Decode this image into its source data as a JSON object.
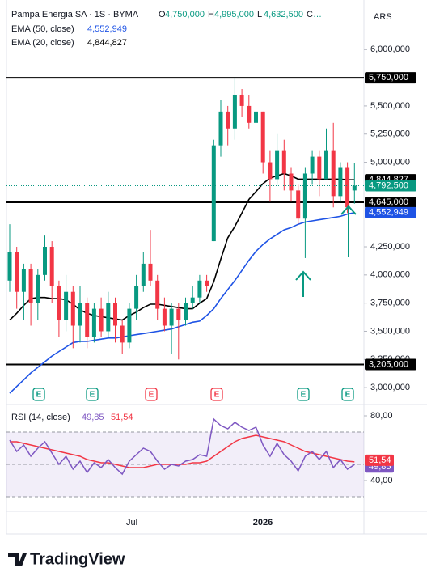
{
  "chart_data": {
    "type": "candlestick",
    "header": {
      "symbol": "Pampa Energia SA · 1S · BYMA",
      "fields": [
        {
          "key": "O",
          "label": "4,750,000"
        },
        {
          "key": "H",
          "label": "4,995,000"
        },
        {
          "key": "L",
          "label": "4,632,500"
        },
        {
          "key": "C",
          "label": "…"
        }
      ]
    },
    "currency": "ARS",
    "ylim": [
      2850000,
      6440000
    ],
    "yticks": [
      {
        "value": 6000000,
        "label": "6,000,000"
      },
      {
        "value": 5500000,
        "label": "5,500,000"
      },
      {
        "value": 5250000,
        "label": "5,250,000"
      },
      {
        "value": 5000000,
        "label": "5,000,000"
      },
      {
        "value": 4250000,
        "label": "4,250,000"
      },
      {
        "value": 4000000,
        "label": "4,000,000"
      },
      {
        "value": 3750000,
        "label": "3,750,000"
      },
      {
        "value": 3500000,
        "label": "3,500,000"
      },
      {
        "value": 3250000,
        "label": "3,250,000"
      },
      {
        "value": 3000000,
        "label": "3,000,000"
      }
    ],
    "up_color": "#089981",
    "down_color": "#f23645",
    "open": [
      3950000,
      4200000,
      3850000,
      4050000,
      3750000,
      4000000,
      4250000,
      3900000,
      3600000,
      3850000,
      3550000,
      3750000,
      3450000,
      3700000,
      3500000,
      3750000,
      3550000,
      3400000,
      3700000,
      3900000,
      4100000,
      3950000,
      3700000,
      3550000,
      3700000,
      3600000,
      3750000,
      3800000,
      3950000,
      4300000,
      5150000,
      5450000,
      5300000,
      5600000,
      5500000,
      5350000,
      5450000,
      5000000,
      4850000,
      5100000,
      4900000,
      4750000,
      4500000,
      4900000,
      5050000,
      4850000,
      5100000,
      4700000,
      4950000,
      4750000
    ],
    "high": [
      4450000,
      4250000,
      4100000,
      4100000,
      4050000,
      4350000,
      4300000,
      3950000,
      4000000,
      3900000,
      3900000,
      3800000,
      3750000,
      3800000,
      3850000,
      3800000,
      3600000,
      3750000,
      4000000,
      4200000,
      4400000,
      4000000,
      3800000,
      3750000,
      3750000,
      3800000,
      3900000,
      4000000,
      4000000,
      5200000,
      5550000,
      5500000,
      5750000,
      5650000,
      5600000,
      5500000,
      5450000,
      5100000,
      5250000,
      5200000,
      4950000,
      4800000,
      4950000,
      5100000,
      5100000,
      5300000,
      5350000,
      5000000,
      5000000,
      4995000
    ],
    "low": [
      3850000,
      3700000,
      3600000,
      3550000,
      3600000,
      3950000,
      3750000,
      3450000,
      3500000,
      3350000,
      3400000,
      3350000,
      3400000,
      3450000,
      3450000,
      3400000,
      3300000,
      3350000,
      3600000,
      3850000,
      3900000,
      3600000,
      3500000,
      3300000,
      3250000,
      3550000,
      3700000,
      3750000,
      3850000,
      4300000,
      5050000,
      5150000,
      5200000,
      5400000,
      5300000,
      5250000,
      4900000,
      4650000,
      4800000,
      4750000,
      4650000,
      4450000,
      4150000,
      4800000,
      4700000,
      4850000,
      4600000,
      4650000,
      4550000,
      4632500
    ],
    "close": [
      4200000,
      3850000,
      4050000,
      3750000,
      4000000,
      4250000,
      3900000,
      3600000,
      3850000,
      3550000,
      3750000,
      3450000,
      3700000,
      3500000,
      3750000,
      3550000,
      3400000,
      3700000,
      3900000,
      4100000,
      3950000,
      3700000,
      3550000,
      3700000,
      3600000,
      3750000,
      3800000,
      3950000,
      3900000,
      5150000,
      5450000,
      5300000,
      5600000,
      5500000,
      5350000,
      5450000,
      5000000,
      4850000,
      5100000,
      4900000,
      4750000,
      4500000,
      4900000,
      5050000,
      4850000,
      5100000,
      4700000,
      4950000,
      4600000,
      4792500
    ],
    "last_price_label": "4,792,500",
    "series": [
      {
        "name": "EMA (50, close)",
        "color": "#1e53e5",
        "last_label": "4,552,949",
        "values": [
          2950000,
          3010000,
          3070000,
          3130000,
          3180000,
          3230000,
          3280000,
          3320000,
          3360000,
          3400000,
          3410000,
          3410000,
          3420000,
          3430000,
          3440000,
          3440000,
          3450000,
          3460000,
          3470000,
          3480000,
          3490000,
          3500000,
          3510000,
          3520000,
          3540000,
          3560000,
          3580000,
          3590000,
          3640000,
          3700000,
          3790000,
          3870000,
          3950000,
          4040000,
          4130000,
          4210000,
          4270000,
          4320000,
          4360000,
          4400000,
          4420000,
          4450000,
          4470000,
          4480000,
          4490000,
          4500000,
          4510000,
          4520000,
          4540000,
          4552949
        ]
      },
      {
        "name": "EMA (20, close)",
        "color": "#000000",
        "last_label": "4,844,827",
        "values": [
          3600000,
          3660000,
          3730000,
          3790000,
          3800000,
          3800000,
          3790000,
          3790000,
          3780000,
          3740000,
          3690000,
          3660000,
          3640000,
          3630000,
          3620000,
          3610000,
          3600000,
          3640000,
          3670000,
          3710000,
          3740000,
          3740000,
          3730000,
          3720000,
          3710000,
          3700000,
          3700000,
          3750000,
          3790000,
          3940000,
          4140000,
          4330000,
          4430000,
          4550000,
          4670000,
          4740000,
          4810000,
          4860000,
          4880000,
          4900000,
          4880000,
          4850000,
          4850000,
          4850000,
          4850000,
          4850000,
          4850000,
          4850000,
          4845000,
          4844827
        ]
      }
    ],
    "hlines": [
      {
        "value": 5750000,
        "label": "5,750,000"
      },
      {
        "value": 4645000,
        "label": "4,645,000"
      },
      {
        "value": 3205000,
        "label": "3,205,000"
      }
    ],
    "earnings": [
      {
        "label": "E",
        "color": "#089981"
      },
      {
        "label": "E",
        "color": "#089981"
      },
      {
        "label": "E",
        "color": "#f23645"
      },
      {
        "label": "E",
        "color": "#f23645"
      },
      {
        "label": "E",
        "color": "#089981"
      },
      {
        "label": "E",
        "color": "#089981"
      }
    ],
    "x_labels": [
      "Jul",
      "2026"
    ],
    "rsi": {
      "title": "RSI (14, close)",
      "ylim": [
        21,
        87
      ],
      "yticks": [
        {
          "value": 80,
          "label": "80,00"
        },
        {
          "value": 40,
          "label": "40,00"
        }
      ],
      "band": [
        70,
        50,
        30
      ],
      "series": [
        {
          "color": "#7e57c2",
          "last_label": "49,85",
          "values": [
            65,
            58,
            62,
            55,
            60,
            64,
            57,
            50,
            55,
            47,
            52,
            45,
            51,
            48,
            53,
            48,
            44,
            52,
            56,
            60,
            58,
            52,
            47,
            50,
            49,
            52,
            53,
            56,
            55,
            78,
            74,
            72,
            76,
            73,
            71,
            73,
            62,
            55,
            63,
            56,
            52,
            46,
            55,
            58,
            53,
            58,
            48,
            53,
            47,
            49.85
          ]
        },
        {
          "color": "#f23645",
          "last_label": "51,54",
          "values": [
            64,
            64,
            63,
            62,
            61,
            60,
            59,
            58,
            57,
            56,
            55,
            53,
            52,
            51,
            51,
            50,
            49,
            48,
            48,
            48,
            49,
            50,
            50,
            50,
            50,
            50,
            51,
            51,
            52,
            55,
            58,
            61,
            64,
            66,
            67,
            68,
            67,
            66,
            65,
            64,
            62,
            60,
            58,
            57,
            56,
            55,
            54,
            53,
            52,
            51.54
          ]
        }
      ]
    },
    "brand": "TradingView"
  }
}
